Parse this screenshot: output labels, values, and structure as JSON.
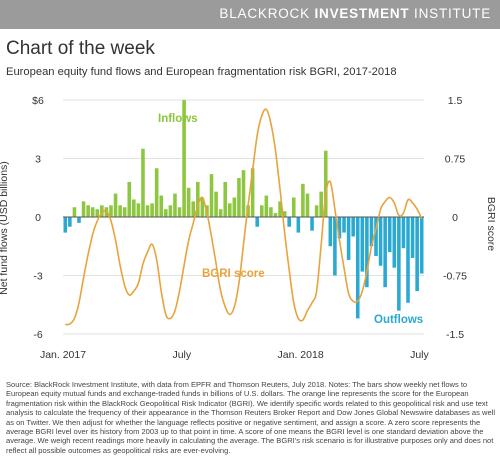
{
  "header": {
    "brand_light": "BLACKROCK",
    "brand_bold": "INVESTMENT",
    "brand_tail": "INSTITUTE"
  },
  "title": "Chart of the week",
  "subtitle": "European equity fund flows and European fragmentation risk BGRI, 2017-2018",
  "source": "Source: BlackRock Investment Institute, with data from EPFR and Thomson Reuters, July 2018. Notes: The bars show weekly net flows to European equity mutual funds and exchange-traded funds in billions of U.S. dollars. The orange line represents the score for the European fragmentation risk within the BlackRock Geopolitical Risk Indicator (BGRI). We identify specific words related to this geopolitical risk and use text analysis to calculate the frequency of their appearance in the Thomson Reuters Broker Report and Dow Jones Global Newswire databases as well as on Twitter. We then adjust for whether the language reflects positive or negative sentiment, and assign a score. A zero score represents the average BGRI level over its history from 2003 up to that point in time. A score of one means the BGRI level is one standard deviation above the average. We weigh recent readings more heavily in calculating the average. The BGRI's risk scenario is for illustrative purposes only and does not reflect all possible outcomes as geopolitical risks are ever-evolving.",
  "chart_data": {
    "type": "bar",
    "ylabel": "Net fund flows (USD billions)",
    "y2label": "BGRI score",
    "ylim": [
      -6,
      6
    ],
    "yticks": [
      "$6",
      "3",
      "0",
      "-3",
      "-6"
    ],
    "y2lim": [
      -1.5,
      1.5
    ],
    "y2ticks": [
      "1.5",
      "0.75",
      "0",
      "-0.75",
      "-1.5"
    ],
    "xticks": [
      {
        "label": "Jan. 2017",
        "week": 0
      },
      {
        "label": "July",
        "week": 26
      },
      {
        "label": "Jan. 2018",
        "week": 52
      },
      {
        "label": "July",
        "week": 78
      }
    ],
    "annotations": [
      {
        "text": "Inflows",
        "color": "#8dc63f"
      },
      {
        "text": "BGRI score",
        "color": "#e8a33d"
      },
      {
        "text": "Outflows",
        "color": "#2aa9d2"
      }
    ],
    "colors": {
      "inflow": "#8dc63f",
      "outflow": "#2aa9d2",
      "bgri": "#e8a33d"
    },
    "series": [
      {
        "name": "Inflows",
        "kind": "bar",
        "values": [
          -0.8,
          -0.5,
          0.5,
          -0.3,
          0.8,
          0.6,
          0.5,
          0.4,
          0.6,
          0.5,
          0.6,
          1.2,
          0.6,
          0.5,
          1.8,
          0.9,
          0.7,
          3.5,
          0.6,
          0.7,
          2.5,
          1.1,
          0.4,
          0.6,
          1.2,
          0.5,
          6.0,
          1.5,
          0.8,
          1.8,
          1.0,
          0.6,
          2.2,
          1.3,
          0.4,
          1.8,
          0.7,
          1.0,
          2.0,
          2.4,
          0.6,
          2.5,
          -0.5,
          0.6,
          1.1,
          0.5,
          0.2,
          0.8,
          0.3,
          -0.5,
          1.0,
          -0.8,
          1.7,
          1.2,
          -0.7,
          0.6,
          1.3,
          3.4,
          -1.5,
          -3.0,
          -1.1,
          -0.8,
          -2.2,
          -1.0,
          -5.2,
          -2.8,
          -3.6,
          -1.5,
          -2.0,
          -2.5,
          -3.6,
          -1.8,
          -2.6,
          -4.8,
          -1.6,
          -4.4,
          -2.1,
          -3.8,
          -2.9
        ]
      },
      {
        "name": "BGRI score",
        "kind": "line",
        "values": [
          -1.38,
          -1.37,
          -1.3,
          -1.1,
          -0.78,
          -0.48,
          -0.22,
          -0.05,
          0.05,
          0.08,
          -0.05,
          -0.3,
          -0.62,
          -0.88,
          -1.0,
          -0.95,
          -0.85,
          -0.6,
          -0.45,
          -0.35,
          -0.55,
          -0.95,
          -1.25,
          -1.3,
          -1.2,
          -0.95,
          -0.62,
          -0.3,
          -0.08,
          0.15,
          0.25,
          0.05,
          -0.25,
          -0.6,
          -0.95,
          -1.15,
          -1.25,
          -1.15,
          -0.85,
          -0.35,
          0.15,
          0.6,
          1.05,
          1.3,
          1.38,
          1.2,
          0.85,
          0.35,
          -0.2,
          -0.68,
          -1.1,
          -1.3,
          -1.32,
          -1.2,
          -1.1,
          -0.95,
          -0.35,
          0.3,
          0.45,
          0.1,
          -0.3,
          -0.65,
          -0.98,
          -1.08,
          -1.08,
          -0.95,
          -0.7,
          -0.38,
          -0.15,
          0.1,
          0.2,
          0.25,
          0.18,
          0.02,
          0.05,
          0.22,
          0.18,
          0.1,
          -0.02
        ]
      }
    ]
  }
}
